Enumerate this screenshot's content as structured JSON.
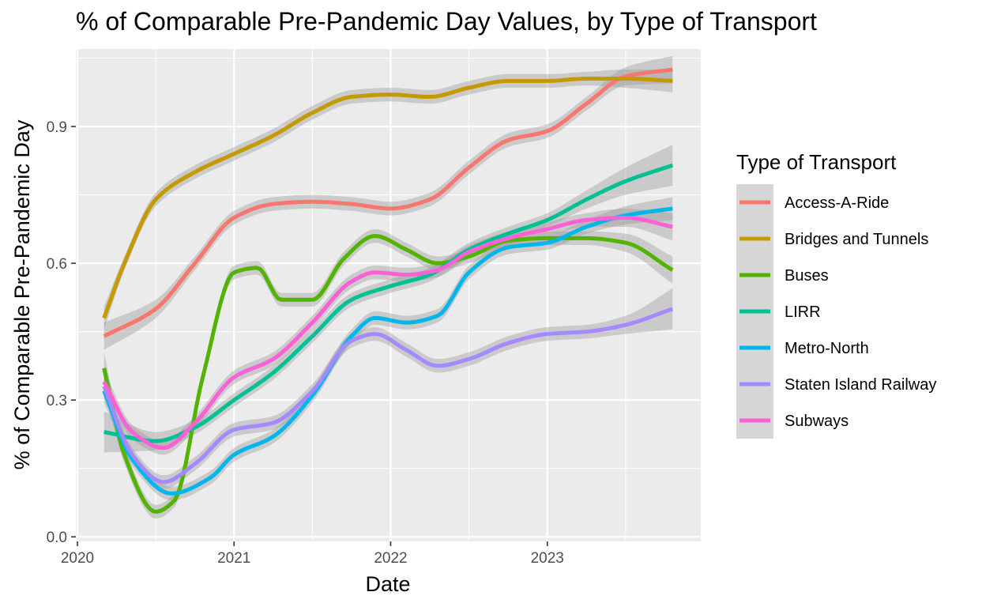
{
  "chart_data": {
    "type": "line",
    "title": "% of Comparable Pre-Pandemic Day Values, by Type of Transport",
    "xlabel": "Date",
    "ylabel": "% of Comparable Pre-Pandemic Day",
    "xlim": [
      2019.99,
      2023.98
    ],
    "ylim": [
      -0.01,
      1.07
    ],
    "x_ticks": [
      2020,
      2021,
      2022,
      2023
    ],
    "x_tick_labels": [
      "2020",
      "2021",
      "2022",
      "2023"
    ],
    "y_ticks": [
      0.0,
      0.3,
      0.6,
      0.9
    ],
    "y_tick_labels": [
      "0.0",
      "0.3",
      "0.6",
      "0.9"
    ],
    "smoothed_with_confidence_band": true,
    "legend": {
      "title": "Type of Transport",
      "position": "right"
    },
    "series": [
      {
        "name": "Access-A-Ride",
        "color": "#F8766D",
        "x": [
          2020.17,
          2020.5,
          2020.75,
          2021.0,
          2021.25,
          2021.5,
          2021.75,
          2022.0,
          2022.25,
          2022.5,
          2022.75,
          2023.0,
          2023.25,
          2023.5,
          2023.8
        ],
        "y": [
          0.44,
          0.5,
          0.6,
          0.7,
          0.73,
          0.735,
          0.73,
          0.72,
          0.74,
          0.81,
          0.87,
          0.89,
          0.95,
          1.01,
          1.025
        ],
        "band": [
          0.03,
          0.02,
          0.015,
          0.015,
          0.015,
          0.015,
          0.015,
          0.015,
          0.015,
          0.015,
          0.015,
          0.015,
          0.015,
          0.02,
          0.03
        ]
      },
      {
        "name": "Bridges and Tunnels",
        "color": "#C49A00",
        "x": [
          2020.17,
          2020.3,
          2020.5,
          2020.75,
          2021.0,
          2021.25,
          2021.5,
          2021.75,
          2022.0,
          2022.25,
          2022.5,
          2022.75,
          2023.0,
          2023.25,
          2023.5,
          2023.8
        ],
        "y": [
          0.48,
          0.6,
          0.74,
          0.8,
          0.84,
          0.88,
          0.93,
          0.965,
          0.97,
          0.965,
          0.985,
          1.0,
          1.0,
          1.005,
          1.005,
          1.0
        ],
        "band": [
          0.025,
          0.015,
          0.015,
          0.015,
          0.015,
          0.015,
          0.015,
          0.015,
          0.015,
          0.015,
          0.015,
          0.015,
          0.015,
          0.015,
          0.02,
          0.025
        ]
      },
      {
        "name": "Buses",
        "color": "#53B400",
        "x": [
          2020.17,
          2020.3,
          2020.5,
          2020.62,
          2020.8,
          2021.0,
          2021.15,
          2021.3,
          2021.5,
          2021.7,
          2021.9,
          2022.1,
          2022.3,
          2022.5,
          2022.75,
          2023.0,
          2023.25,
          2023.5,
          2023.8
        ],
        "y": [
          0.37,
          0.18,
          0.055,
          0.08,
          0.35,
          0.58,
          0.59,
          0.52,
          0.52,
          0.61,
          0.66,
          0.63,
          0.6,
          0.615,
          0.65,
          0.655,
          0.655,
          0.645,
          0.585
        ],
        "band": [
          0.035,
          0.02,
          0.015,
          0.015,
          0.015,
          0.015,
          0.015,
          0.015,
          0.015,
          0.015,
          0.015,
          0.015,
          0.015,
          0.015,
          0.015,
          0.015,
          0.015,
          0.02,
          0.03
        ]
      },
      {
        "name": "LIRR",
        "color": "#00C094",
        "x": [
          2020.17,
          2020.5,
          2020.75,
          2021.0,
          2021.25,
          2021.5,
          2021.75,
          2022.0,
          2022.25,
          2022.5,
          2022.75,
          2023.0,
          2023.25,
          2023.5,
          2023.8
        ],
        "y": [
          0.23,
          0.21,
          0.24,
          0.3,
          0.36,
          0.44,
          0.52,
          0.55,
          0.575,
          0.63,
          0.665,
          0.695,
          0.74,
          0.78,
          0.815
        ],
        "band": [
          0.045,
          0.02,
          0.015,
          0.015,
          0.015,
          0.015,
          0.015,
          0.015,
          0.015,
          0.015,
          0.015,
          0.015,
          0.02,
          0.03,
          0.045
        ]
      },
      {
        "name": "Metro-North",
        "color": "#00B6EB",
        "x": [
          2020.17,
          2020.35,
          2020.6,
          2020.85,
          2021.0,
          2021.25,
          2021.5,
          2021.75,
          2021.9,
          2022.1,
          2022.3,
          2022.5,
          2022.75,
          2023.0,
          2023.25,
          2023.5,
          2023.8
        ],
        "y": [
          0.32,
          0.17,
          0.095,
          0.13,
          0.18,
          0.22,
          0.31,
          0.44,
          0.48,
          0.47,
          0.485,
          0.58,
          0.635,
          0.645,
          0.68,
          0.705,
          0.72
        ],
        "band": [
          0.025,
          0.015,
          0.015,
          0.015,
          0.015,
          0.015,
          0.015,
          0.015,
          0.015,
          0.015,
          0.015,
          0.015,
          0.015,
          0.015,
          0.015,
          0.02,
          0.025
        ]
      },
      {
        "name": "Staten Island Railway",
        "color": "#A58AFF",
        "x": [
          2020.17,
          2020.35,
          2020.55,
          2020.75,
          2021.0,
          2021.25,
          2021.5,
          2021.75,
          2021.9,
          2022.1,
          2022.3,
          2022.5,
          2022.75,
          2023.0,
          2023.25,
          2023.5,
          2023.8
        ],
        "y": [
          0.33,
          0.18,
          0.12,
          0.16,
          0.235,
          0.25,
          0.32,
          0.43,
          0.445,
          0.41,
          0.375,
          0.39,
          0.425,
          0.445,
          0.45,
          0.465,
          0.5
        ],
        "band": [
          0.025,
          0.015,
          0.015,
          0.015,
          0.015,
          0.015,
          0.015,
          0.015,
          0.015,
          0.015,
          0.015,
          0.015,
          0.015,
          0.015,
          0.015,
          0.02,
          0.045
        ]
      },
      {
        "name": "Subways",
        "color": "#FB61D7",
        "x": [
          2020.17,
          2020.35,
          2020.55,
          2020.75,
          2021.0,
          2021.25,
          2021.5,
          2021.75,
          2021.9,
          2022.1,
          2022.3,
          2022.5,
          2022.75,
          2023.0,
          2023.25,
          2023.5,
          2023.8
        ],
        "y": [
          0.34,
          0.23,
          0.195,
          0.25,
          0.35,
          0.39,
          0.47,
          0.56,
          0.58,
          0.575,
          0.585,
          0.625,
          0.655,
          0.675,
          0.695,
          0.7,
          0.68
        ],
        "band": [
          0.025,
          0.015,
          0.015,
          0.015,
          0.015,
          0.015,
          0.015,
          0.015,
          0.015,
          0.015,
          0.015,
          0.015,
          0.015,
          0.015,
          0.015,
          0.02,
          0.03
        ]
      }
    ]
  }
}
